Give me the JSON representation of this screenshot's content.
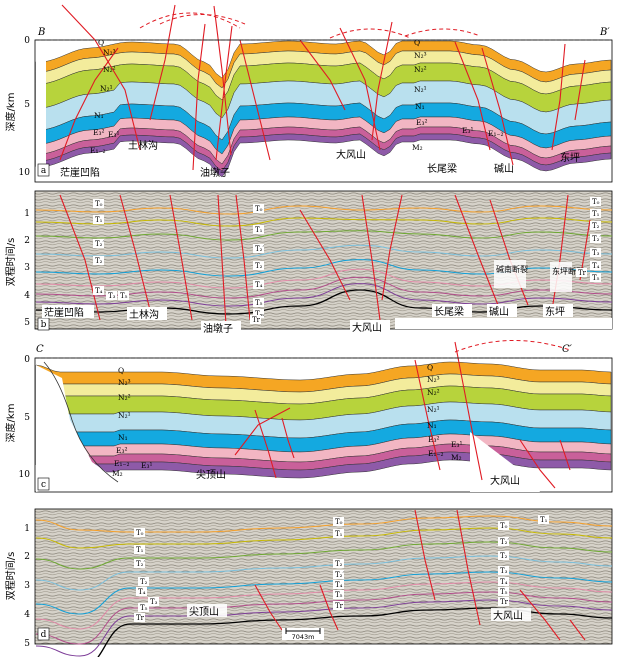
{
  "panels": [
    {
      "letter": "a",
      "kind": "geologic-section",
      "section_start": "B",
      "section_end": "B′",
      "axis_label": "深度/km",
      "ticks": [
        "0",
        "5",
        "10"
      ],
      "places": [
        "茫崖凹陷",
        "土林沟",
        "油墩子",
        "大风山",
        "长尾梁",
        "碱山",
        "东坪"
      ],
      "strata_left": [
        "Q",
        "N₂³",
        "N₂²",
        "N₂¹",
        "N₁",
        "E₃²",
        "E₃¹",
        "E₁₋₂"
      ],
      "strata_mid": [
        "Q",
        "N₂³",
        "N₂²",
        "N₂¹",
        "N₁",
        "E₃²",
        "E₃¹",
        "E₁₋₂",
        "M₂"
      ],
      "layer_colors": [
        "#f5a623",
        "#f3ec9c",
        "#b7d33c",
        "#b9e0ee",
        "#14a9e0",
        "#f2b6c3",
        "#c9609a",
        "#8e5aa8"
      ]
    },
    {
      "letter": "b",
      "kind": "seismic-section",
      "axis_label": "双程时间/s",
      "ticks": [
        "1",
        "2",
        "3",
        "4",
        "5"
      ],
      "places": [
        "茫崖凹陷",
        "土林沟",
        "油墩子",
        "大风山",
        "长尾梁",
        "碱山",
        "东坪"
      ],
      "fault_names": [
        "碱南断裂",
        "东坪断裂"
      ],
      "horizon_tags": [
        "T₀",
        "T₁",
        "T₂",
        "T₂′",
        "T₃",
        "T₄",
        "T₅",
        "T₆",
        "Tr",
        "Tₘ"
      ]
    },
    {
      "letter": "c",
      "kind": "geologic-section",
      "section_start": "C",
      "section_end": "C′",
      "axis_label": "深度/km",
      "ticks": [
        "0",
        "5",
        "10"
      ],
      "places": [
        "尖顶山",
        "大风山"
      ],
      "strata_left": [
        "Q",
        "N₂³",
        "N₂²",
        "N₂¹",
        "N₁",
        "E₃²",
        "E₃¹",
        "E₁₋₂",
        "M₂"
      ],
      "strata_right": [
        "Q",
        "N₂³",
        "N₂²",
        "N₂¹",
        "N₁",
        "E₃²",
        "E₃¹",
        "E₁₋₂",
        "M₂"
      ]
    },
    {
      "letter": "d",
      "kind": "seismic-section",
      "axis_label": "双程时间/s",
      "ticks": [
        "1",
        "2",
        "3",
        "4",
        "5"
      ],
      "places": [
        "尖顶山",
        "大风山"
      ],
      "scale_bar": "7043m",
      "horizon_tags": [
        "T₀",
        "T₁",
        "T₂",
        "T₂′",
        "T₃",
        "T₄",
        "T₅",
        "T₆",
        "Tr"
      ]
    }
  ]
}
